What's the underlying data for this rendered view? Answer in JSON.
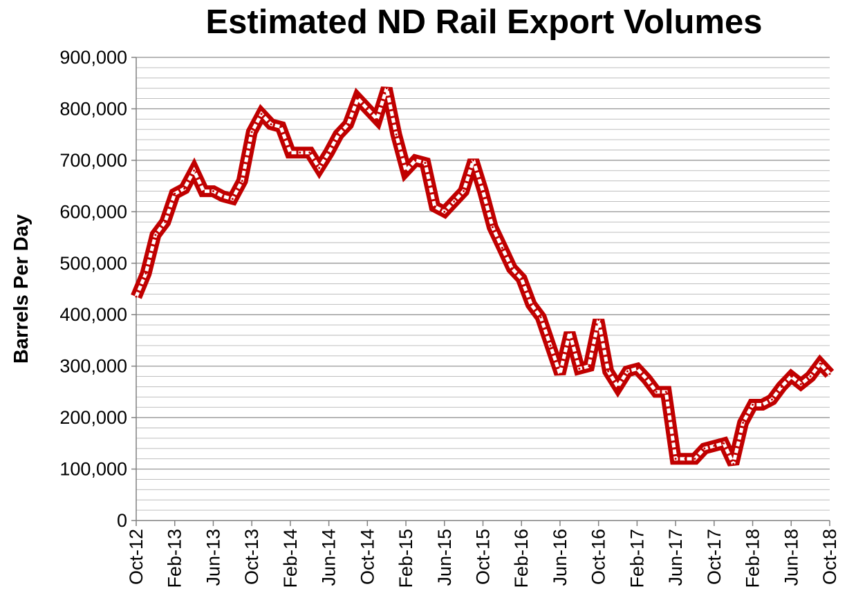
{
  "chart_data": {
    "type": "line",
    "title": "Estimated ND Rail Export Volumes",
    "ylabel": "Barrels Per Day",
    "xlabel": "",
    "ylim": [
      0,
      900000
    ],
    "y_major_step": 100000,
    "y_minor_step": 20000,
    "grid": true,
    "legend": "none",
    "line_color": "#c00000",
    "y_tick_labels": [
      "0",
      "100,000",
      "200,000",
      "300,000",
      "400,000",
      "500,000",
      "600,000",
      "700,000",
      "800,000",
      "900,000"
    ],
    "x_tick_labels": [
      "Oct-12",
      "Feb-13",
      "Jun-13",
      "Oct-13",
      "Feb-14",
      "Jun-14",
      "Oct-14",
      "Feb-15",
      "Jun-15",
      "Oct-15",
      "Feb-16",
      "Jun-16",
      "Oct-16",
      "Feb-17",
      "Jun-17",
      "Oct-17",
      "Feb-18",
      "Jun-18",
      "Oct-18"
    ],
    "x_tick_month_index": [
      0,
      4,
      8,
      12,
      16,
      20,
      24,
      28,
      32,
      36,
      40,
      44,
      48,
      52,
      56,
      60,
      64,
      68,
      72
    ],
    "series": [
      {
        "values": [
          435000,
          480000,
          555000,
          580000,
          635000,
          645000,
          680000,
          640000,
          640000,
          630000,
          625000,
          660000,
          755000,
          790000,
          770000,
          765000,
          715000,
          715000,
          715000,
          685000,
          715000,
          750000,
          770000,
          820000,
          800000,
          780000,
          840000,
          750000,
          680000,
          700000,
          695000,
          610000,
          600000,
          620000,
          640000,
          700000,
          640000,
          570000,
          530000,
          490000,
          470000,
          420000,
          395000,
          340000,
          285000,
          365000,
          295000,
          300000,
          390000,
          290000,
          260000,
          290000,
          295000,
          275000,
          250000,
          250000,
          120000,
          120000,
          120000,
          140000,
          145000,
          150000,
          110000,
          190000,
          225000,
          225000,
          235000,
          260000,
          280000,
          265000,
          280000,
          305000,
          285000
        ]
      }
    ]
  }
}
